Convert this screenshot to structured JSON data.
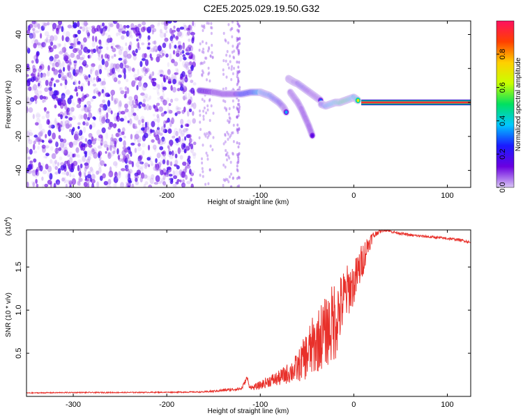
{
  "title": "C2E5.2025.029.19.50.G32",
  "chart_data": [
    {
      "type": "heatmap",
      "xlabel": "Height of straight line (km)",
      "ylabel": "Frequency (Hz)",
      "xlim": [
        -350,
        125
      ],
      "ylim": [
        -50,
        48
      ],
      "x_ticks": [
        -300,
        -200,
        -100,
        0,
        100
      ],
      "y_ticks": [
        -40,
        -20,
        0,
        20,
        40
      ],
      "colorbar": {
        "label": "Normalized spectral amplitude",
        "range": [
          0.0,
          1.0
        ],
        "ticks": [
          0.0,
          0.2,
          0.4,
          0.6,
          0.8
        ],
        "colors": [
          "#d9c6f5",
          "#6a00e0",
          "#1a1aff",
          "#00c8ff",
          "#00e060",
          "#c8ff00",
          "#ffd000",
          "#ff4000",
          "#ff1060"
        ]
      },
      "noise_region": {
        "x": [
          -350,
          -170
        ],
        "y": [
          -50,
          48
        ],
        "max_amplitude": 0.2
      },
      "faint_stripes": [
        {
          "x": [
            -165,
            -150
          ],
          "amplitude": 0.05
        },
        {
          "x": [
            -140,
            -128
          ],
          "amplitude": 0.05
        },
        {
          "x": [
            -125,
            -122
          ],
          "amplitude": 0.07
        }
      ],
      "traces": [
        {
          "segment": "main",
          "x": [
            -165,
            -150,
            -140,
            -130,
            -120,
            -110,
            -100,
            -95,
            -90,
            -85,
            -80,
            -75,
            -72
          ],
          "y": [
            7,
            6,
            5,
            5,
            5,
            6,
            6,
            5,
            4,
            2,
            0,
            -3,
            -6
          ],
          "amplitude": [
            0.4,
            0.35,
            0.3,
            0.3,
            0.5,
            0.5,
            0.6,
            0.55,
            0.55,
            0.5,
            0.45,
            0.4,
            0.35
          ]
        },
        {
          "segment": "jump",
          "x": [
            -70,
            -67,
            -64,
            -60,
            -55,
            -50,
            -45,
            -40,
            -35
          ],
          "y": [
            14,
            13,
            12,
            11,
            9,
            7,
            5,
            3,
            1
          ],
          "amplitude": [
            0.2,
            0.3,
            0.4,
            0.4,
            0.45,
            0.4,
            0.35,
            0.3,
            0.3
          ]
        },
        {
          "segment": "branch",
          "x": [
            -68,
            -64,
            -60,
            -56,
            -52,
            -48,
            -44
          ],
          "y": [
            6,
            3,
            0,
            -4,
            -9,
            -14,
            -20
          ],
          "amplitude": [
            0.3,
            0.35,
            0.3,
            0.25,
            0.2,
            0.2,
            0.15
          ]
        },
        {
          "segment": "late",
          "x": [
            -35,
            -30,
            -25,
            -20,
            -15,
            -10,
            -5,
            0,
            5
          ],
          "y": [
            -1,
            -2,
            -1,
            0,
            0,
            1,
            2,
            3,
            1
          ],
          "amplitude": [
            0.4,
            0.55,
            0.6,
            0.65,
            0.7,
            0.75,
            0.7,
            0.6,
            0.7
          ]
        },
        {
          "segment": "steady",
          "x": [
            8,
            125
          ],
          "y": [
            0,
            0
          ],
          "amplitude": [
            0.95,
            0.95
          ]
        }
      ]
    },
    {
      "type": "line",
      "xlabel": "Height of straight line (km)",
      "ylabel": "SNR (10 * v/v)",
      "y_multiplier_label": "(x10",
      "y_multiplier_exp": "4",
      "y_multiplier_close": ")",
      "xlim": [
        -350,
        125
      ],
      "ylim": [
        0,
        19300
      ],
      "x_ticks": [
        -300,
        -200,
        -100,
        0,
        100
      ],
      "y_ticks": [
        0.5,
        1.0,
        1.5
      ],
      "series": [
        {
          "color": "#e8302a",
          "x": [
            -350,
            -300,
            -250,
            -200,
            -160,
            -140,
            -120,
            -114,
            -112,
            -108,
            -100,
            -90,
            -80,
            -70,
            -60,
            -55,
            -50,
            -45,
            -40,
            -35,
            -30,
            -25,
            -20,
            -15,
            -10,
            -5,
            0,
            5,
            10,
            15,
            20,
            25,
            30,
            35,
            40,
            50,
            60,
            70,
            80,
            90,
            100,
            110,
            120,
            125
          ],
          "y": [
            400,
            450,
            450,
            480,
            520,
            700,
            900,
            2200,
            1200,
            1000,
            1300,
            1800,
            2100,
            2700,
            3300,
            4200,
            4800,
            5600,
            6200,
            7000,
            7500,
            8000,
            9000,
            10000,
            11500,
            12500,
            13000,
            14500,
            16000,
            17500,
            18500,
            19000,
            19200,
            19300,
            19100,
            18900,
            18700,
            18600,
            18500,
            18400,
            18300,
            18200,
            18000,
            17800
          ],
          "noise_amplitude": [
            50,
            60,
            60,
            60,
            80,
            150,
            200,
            300,
            200,
            300,
            500,
            700,
            900,
            1200,
            1800,
            2200,
            3000,
            3500,
            3500,
            4000,
            4000,
            4500,
            5000,
            4000,
            3500,
            3000,
            2500,
            2500,
            2000,
            1200,
            600,
            300,
            150,
            150,
            150,
            150,
            150,
            150,
            150,
            150,
            150,
            150,
            150,
            150
          ]
        }
      ]
    }
  ]
}
